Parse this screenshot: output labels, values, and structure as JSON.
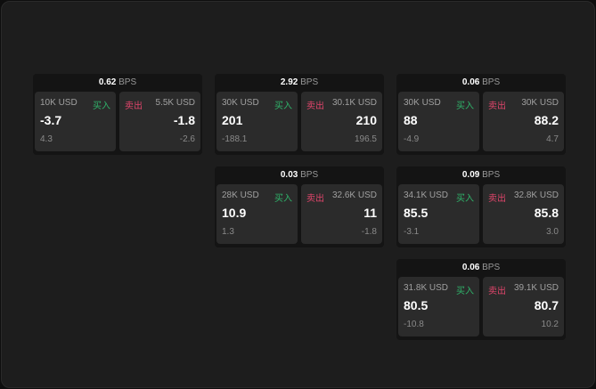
{
  "labels": {
    "buy": "买入",
    "sell": "卖出",
    "unit": "BPS"
  },
  "colors": {
    "buy": "#2fb36a",
    "sell": "#e0456b"
  },
  "widgets": [
    {
      "spread": "0.62",
      "buy": {
        "size": "10K USD",
        "price": "-3.7",
        "change": "4.3"
      },
      "sell": {
        "size": "5.5K USD",
        "price": "-1.8",
        "change": "-2.6"
      }
    },
    {
      "spread": "2.92",
      "buy": {
        "size": "30K USD",
        "price": "201",
        "change": "-188.1"
      },
      "sell": {
        "size": "30.1K USD",
        "price": "210",
        "change": "196.5"
      }
    },
    {
      "spread": "0.06",
      "buy": {
        "size": "30K USD",
        "price": "88",
        "change": "-4.9"
      },
      "sell": {
        "size": "30K USD",
        "price": "88.2",
        "change": "4.7"
      }
    },
    {
      "spread": "0.03",
      "buy": {
        "size": "28K USD",
        "price": "10.9",
        "change": "1.3"
      },
      "sell": {
        "size": "32.6K USD",
        "price": "11",
        "change": "-1.8"
      }
    },
    {
      "spread": "0.09",
      "buy": {
        "size": "34.1K USD",
        "price": "85.5",
        "change": "-3.1"
      },
      "sell": {
        "size": "32.8K USD",
        "price": "85.8",
        "change": "3.0"
      }
    },
    {
      "spread": "0.06",
      "buy": {
        "size": "31.8K USD",
        "price": "80.5",
        "change": "-10.8"
      },
      "sell": {
        "size": "39.1K USD",
        "price": "80.7",
        "change": "10.2"
      }
    }
  ]
}
